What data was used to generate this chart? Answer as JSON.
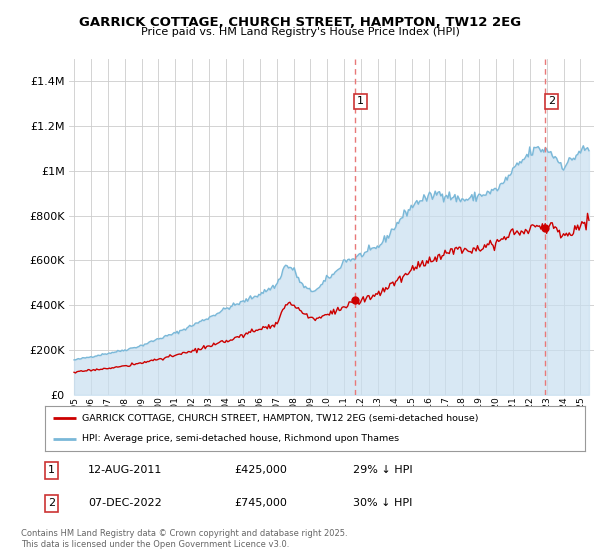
{
  "title": "GARRICK COTTAGE, CHURCH STREET, HAMPTON, TW12 2EG",
  "subtitle": "Price paid vs. HM Land Registry's House Price Index (HPI)",
  "legend_red": "GARRICK COTTAGE, CHURCH STREET, HAMPTON, TW12 2EG (semi-detached house)",
  "legend_blue": "HPI: Average price, semi-detached house, Richmond upon Thames",
  "annotation1_date": "12-AUG-2011",
  "annotation1_price": "£425,000",
  "annotation1_hpi": "29% ↓ HPI",
  "annotation2_date": "07-DEC-2022",
  "annotation2_price": "£745,000",
  "annotation2_hpi": "30% ↓ HPI",
  "vline1_year": 2011.62,
  "vline2_year": 2022.92,
  "dot1_year": 2011.62,
  "dot1_value": 425000,
  "dot2_year": 2022.92,
  "dot2_value": 745000,
  "red_color": "#cc0000",
  "blue_color": "#7ab8d8",
  "blue_fill_color": "#c8dff0",
  "vline_color": "#e87878",
  "dot_color": "#cc0000",
  "ylim": [
    0,
    1500000
  ],
  "yticks": [
    0,
    200000,
    400000,
    600000,
    800000,
    1000000,
    1200000,
    1400000
  ],
  "xlim_start": 1994.7,
  "xlim_end": 2025.8,
  "xlabel_years": [
    1995,
    1996,
    1997,
    1998,
    1999,
    2000,
    2001,
    2002,
    2003,
    2004,
    2005,
    2006,
    2007,
    2008,
    2009,
    2010,
    2011,
    2012,
    2013,
    2014,
    2015,
    2016,
    2017,
    2018,
    2019,
    2020,
    2021,
    2022,
    2023,
    2024,
    2025
  ],
  "footnote": "Contains HM Land Registry data © Crown copyright and database right 2025.\nThis data is licensed under the Open Government Licence v3.0.",
  "background_color": "#ffffff",
  "grid_color": "#cccccc"
}
